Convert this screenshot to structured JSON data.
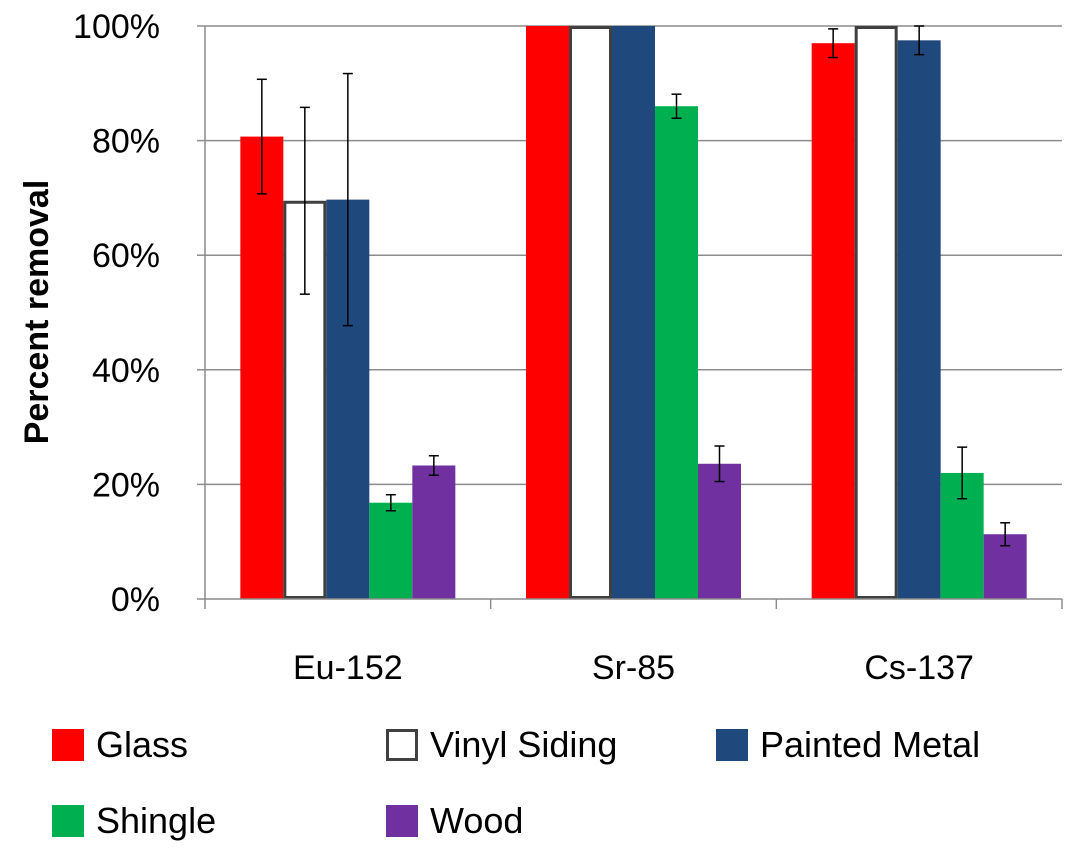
{
  "chart_data": {
    "type": "bar",
    "ylabel": "Percent removal",
    "xlabel": "",
    "ylim": [
      0,
      100
    ],
    "yticks": [
      0,
      20,
      40,
      60,
      80,
      100
    ],
    "ytick_labels": [
      "0%",
      "20%",
      "40%",
      "60%",
      "80%",
      "100%"
    ],
    "categories": [
      "Eu-152",
      "Sr-85",
      "Cs-137"
    ],
    "grid": true,
    "legend_position": "bottom",
    "series": [
      {
        "name": "Glass",
        "color": "#FF0000",
        "border": "#FF0000",
        "values": [
          80.7,
          100,
          97.0
        ],
        "errors": [
          10.0,
          0,
          2.5
        ]
      },
      {
        "name": "Vinyl Siding",
        "color": "#FFFFFF",
        "border": "#404040",
        "values": [
          69.5,
          100,
          100
        ],
        "errors": [
          16.3,
          0,
          0
        ]
      },
      {
        "name": "Painted Metal",
        "color": "#1F497D",
        "border": "#1F497D",
        "values": [
          69.7,
          100,
          97.5
        ],
        "errors": [
          22.0,
          0,
          2.5
        ]
      },
      {
        "name": "Shingle",
        "color": "#00B050",
        "border": "#00B050",
        "values": [
          16.8,
          86.0,
          22.0
        ],
        "errors": [
          1.4,
          2.1,
          4.5
        ]
      },
      {
        "name": "Wood",
        "color": "#7030A0",
        "border": "#7030A0",
        "values": [
          23.3,
          23.6,
          11.3
        ],
        "errors": [
          1.7,
          3.1,
          2.0
        ]
      }
    ]
  }
}
